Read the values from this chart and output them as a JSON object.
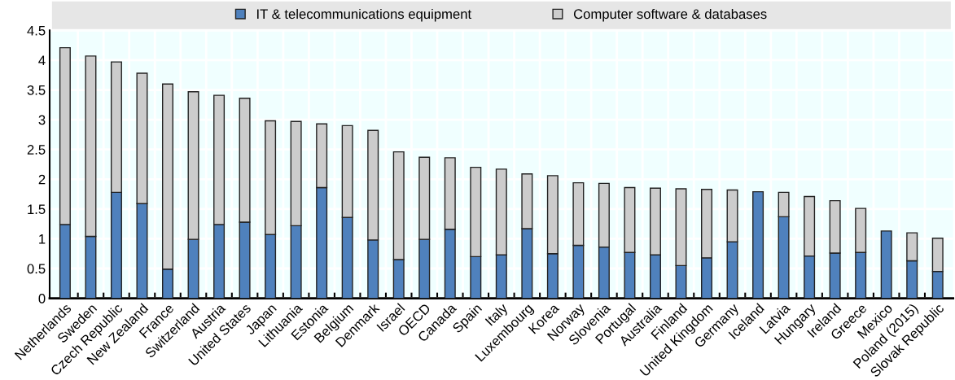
{
  "chart_data": {
    "type": "bar",
    "stacked": true,
    "categories": [
      "Netherlands",
      "Sweden",
      "Czech Republic",
      "New Zealand",
      "France",
      "Switzerland",
      "Austria",
      "United States",
      "Japan",
      "Lithuania",
      "Estonia",
      "Belgium",
      "Denmark",
      "Israel",
      "OECD",
      "Canada",
      "Spain",
      "Italy",
      "Luxembourg",
      "Korea",
      "Norway",
      "Slovenia",
      "Portugal",
      "Australia",
      "Finland",
      "United Kingdom",
      "Germany",
      "Iceland",
      "Latvia",
      "Hungary",
      "Ireland",
      "Greece",
      "Mexico",
      "Poland (2015)",
      "Slovak Republic"
    ],
    "series": [
      {
        "name": "IT & telecommunications equipment",
        "color": "#4f81bd",
        "values": [
          1.24,
          1.04,
          1.78,
          1.59,
          0.49,
          0.99,
          1.24,
          1.28,
          1.07,
          1.22,
          1.86,
          1.36,
          0.98,
          0.65,
          0.99,
          1.16,
          0.7,
          0.73,
          1.17,
          0.75,
          0.89,
          0.86,
          0.77,
          0.73,
          0.55,
          0.68,
          0.95,
          1.79,
          1.37,
          0.71,
          0.76,
          0.77,
          1.13,
          0.63,
          0.45
        ]
      },
      {
        "name": "Computer software & databases",
        "color": "#cccccc",
        "values": [
          2.97,
          3.03,
          2.19,
          2.19,
          3.11,
          2.48,
          2.17,
          2.08,
          1.91,
          1.75,
          1.07,
          1.54,
          1.84,
          1.81,
          1.38,
          1.2,
          1.5,
          1.44,
          0.92,
          1.31,
          1.05,
          1.07,
          1.09,
          1.12,
          1.29,
          1.15,
          0.87,
          null,
          0.41,
          1.0,
          0.88,
          0.74,
          null,
          0.47,
          0.56
        ]
      }
    ],
    "ylim": [
      0,
      4.5
    ],
    "yticks": [
      0,
      0.5,
      1,
      1.5,
      2,
      2.5,
      3,
      3.5,
      4,
      4.5
    ],
    "grid": true,
    "legend": "top"
  }
}
